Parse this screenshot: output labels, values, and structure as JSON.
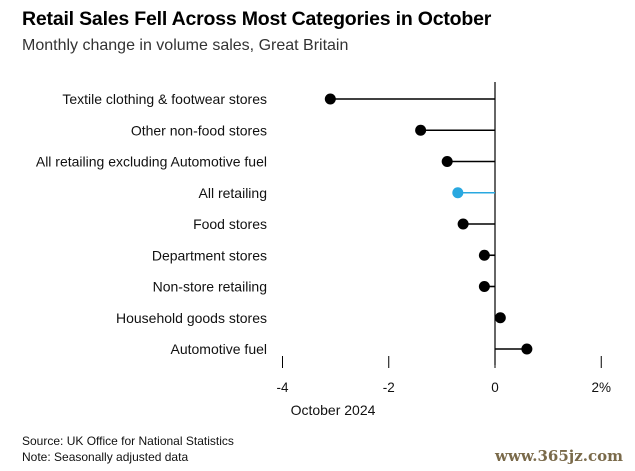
{
  "header": {
    "title": "Retail Sales Fell Across Most Categories in October",
    "subtitle": "Monthly change in volume sales, Great Britain"
  },
  "footer": {
    "source": "Source: UK Office for National Statistics",
    "note": "Note: Seasonally adjusted data",
    "watermark": "www.365jz.com"
  },
  "chart_data": {
    "type": "dot",
    "title": "Retail Sales Fell Across Most Categories in October",
    "subtitle": "Monthly change in volume sales, Great Britain",
    "xlabel": "October 2024",
    "xlim": [
      -4,
      2
    ],
    "xticks": [
      {
        "value": -4,
        "label": "-4"
      },
      {
        "value": -2,
        "label": "-2"
      },
      {
        "value": 0,
        "label": "0"
      },
      {
        "value": 2,
        "label": "2%"
      }
    ],
    "categories": [
      "Textile clothing & footwear stores",
      "Other non-food stores",
      "All retailing excluding Automotive fuel",
      "All retailing",
      "Food stores",
      "Department stores",
      "Non-store retailing",
      "Household goods stores",
      "Automotive fuel"
    ],
    "values": [
      -3.1,
      -1.4,
      -0.9,
      -0.7,
      -0.6,
      -0.2,
      -0.2,
      0.1,
      0.6
    ],
    "highlight_category": "All retailing",
    "colors": {
      "default": "#000000",
      "highlight": "#29a8e0",
      "axis": "#000000"
    },
    "grid": false
  }
}
